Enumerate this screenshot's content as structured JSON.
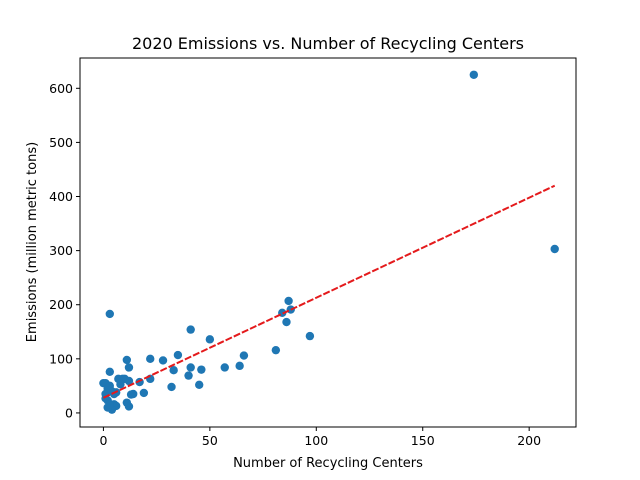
{
  "chart_data": {
    "type": "scatter",
    "title": "2020 Emissions vs. Number of Recycling Centers",
    "xlabel": "Number of Recycling Centers",
    "ylabel": "Emissions (million metric tons)",
    "xlim": [
      -11,
      222
    ],
    "ylim": [
      -26,
      656
    ],
    "xticks": [
      0,
      50,
      100,
      150,
      200
    ],
    "yticks": [
      0,
      100,
      200,
      300,
      400,
      500,
      600
    ],
    "grid": false,
    "legend": "none",
    "colors": {
      "points": "#1f77b4",
      "trend": "#e41a1c"
    },
    "points": [
      [
        174,
        625
      ],
      [
        212,
        303
      ],
      [
        3,
        183
      ],
      [
        87,
        207
      ],
      [
        88,
        191
      ],
      [
        84,
        185
      ],
      [
        86,
        168
      ],
      [
        97,
        142
      ],
      [
        81,
        116
      ],
      [
        41,
        154
      ],
      [
        50,
        136
      ],
      [
        66,
        106
      ],
      [
        64,
        87
      ],
      [
        57,
        84
      ],
      [
        35,
        107
      ],
      [
        41,
        84
      ],
      [
        46,
        80
      ],
      [
        40,
        69
      ],
      [
        45,
        52
      ],
      [
        32,
        48
      ],
      [
        33,
        79
      ],
      [
        28,
        97
      ],
      [
        22,
        100
      ],
      [
        22,
        63
      ],
      [
        19,
        37
      ],
      [
        17,
        57
      ],
      [
        14,
        35
      ],
      [
        13,
        34
      ],
      [
        12,
        84
      ],
      [
        11,
        98
      ],
      [
        12,
        59
      ],
      [
        10,
        63
      ],
      [
        9,
        63
      ],
      [
        8,
        53
      ],
      [
        7,
        63
      ],
      [
        11,
        19
      ],
      [
        12,
        12
      ],
      [
        6,
        13
      ],
      [
        5,
        16
      ],
      [
        3,
        76
      ],
      [
        3,
        12
      ],
      [
        4,
        6
      ],
      [
        2,
        10
      ],
      [
        1,
        35
      ],
      [
        0,
        55
      ],
      [
        1,
        55
      ],
      [
        3,
        50
      ],
      [
        2,
        45
      ],
      [
        1,
        27
      ],
      [
        2,
        23
      ],
      [
        4,
        40
      ],
      [
        5,
        35
      ],
      [
        6,
        38
      ],
      [
        3,
        16
      ]
    ],
    "trend_line": {
      "x": [
        0,
        212
      ],
      "y": [
        28,
        420
      ]
    }
  }
}
